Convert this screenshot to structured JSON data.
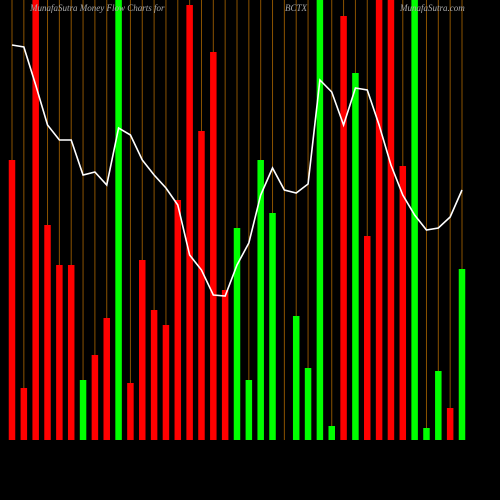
{
  "chart_data": {
    "type": "bar",
    "title": "MunafaSutra  Money Flow  Charts for",
    "ticker": "BCTX",
    "site": "MunafaSutra.com",
    "ylim": [
      0,
      440
    ],
    "categories": [
      null,
      null,
      null,
      null,
      null,
      null,
      null,
      null,
      null,
      null,
      null,
      null,
      null,
      null,
      null,
      null,
      null,
      null,
      null,
      null,
      null,
      null,
      null,
      null,
      null,
      null,
      null,
      null,
      null,
      null,
      null,
      null,
      null,
      null,
      null,
      null,
      null,
      null,
      null
    ],
    "values": [
      280,
      52,
      440,
      215,
      175,
      175,
      60,
      85,
      122,
      440,
      57,
      180,
      130,
      115,
      240,
      435,
      309,
      388,
      150,
      212,
      60,
      280,
      227,
      0,
      124,
      72,
      440,
      14,
      424,
      367,
      204,
      440,
      440,
      274,
      440,
      12,
      69,
      32,
      171
    ],
    "colors": [
      "#ff0000",
      "#ff0000",
      "#ff0000",
      "#ff0000",
      "#ff0000",
      "#ff0000",
      "#00ff00",
      "#ff0000",
      "#ff0000",
      "#00ff00",
      "#ff0000",
      "#ff0000",
      "#ff0000",
      "#ff0000",
      "#ff0000",
      "#ff0000",
      "#ff0000",
      "#ff0000",
      "#ff0000",
      "#00ff00",
      "#00ff00",
      "#00ff00",
      "#00ff00",
      "#00ff00",
      "#00ff00",
      "#00ff00",
      "#00ff00",
      "#00ff00",
      "#ff0000",
      "#00ff00",
      "#ff0000",
      "#ff0000",
      "#ff0000",
      "#ff0000",
      "#00ff00",
      "#00ff00",
      "#00ff00",
      "#ff0000",
      "#00ff00"
    ],
    "line": {
      "color": "#ffffff",
      "values": [
        395,
        393,
        355,
        315,
        300,
        300,
        265,
        268,
        255,
        312,
        305,
        280,
        265,
        252,
        235,
        185,
        170,
        145,
        144,
        175,
        197,
        245,
        272,
        250,
        247,
        256,
        360,
        348,
        315,
        352,
        350,
        315,
        275,
        245,
        225,
        210,
        212,
        223,
        250
      ]
    }
  }
}
